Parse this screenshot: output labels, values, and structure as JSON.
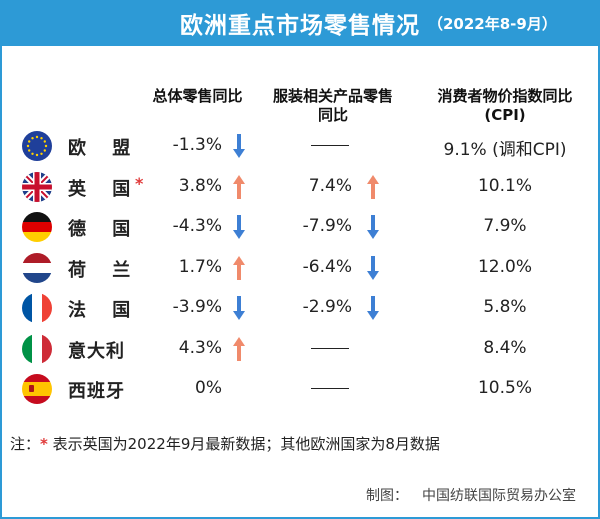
{
  "title": "欧洲重点市场零售情况",
  "subtitle": "（2022年8-9月）",
  "columns": {
    "retail": "总体零售同比",
    "apparel_line1": "服装相关产品零售",
    "apparel_line2": "同比",
    "cpi_line1": "消费者物价指数同比",
    "cpi_line2": "(CPI)"
  },
  "rows": [
    {
      "country": "欧 盟",
      "retail": "-1.3%",
      "retail_dir": "down",
      "apparel": "——",
      "apparel_dir": "",
      "cpi": "9.1% (调和CPI)",
      "flag": "eu-flag-icon",
      "star": ""
    },
    {
      "country": "英 国",
      "retail": "3.8%",
      "retail_dir": "up",
      "apparel": "7.4%",
      "apparel_dir": "up",
      "cpi": "10.1%",
      "flag": "uk-flag-icon",
      "star": "*"
    },
    {
      "country": "德 国",
      "retail": "-4.3%",
      "retail_dir": "down",
      "apparel": "-7.9%",
      "apparel_dir": "down",
      "cpi": "7.9%",
      "flag": "germany-flag-icon",
      "star": ""
    },
    {
      "country": "荷 兰",
      "retail": "1.7%",
      "retail_dir": "up",
      "apparel": "-6.4%",
      "apparel_dir": "down",
      "cpi": "12.0%",
      "flag": "netherlands-flag-icon",
      "star": ""
    },
    {
      "country": "法 国",
      "retail": "-3.9%",
      "retail_dir": "down",
      "apparel": "-2.9%",
      "apparel_dir": "down",
      "cpi": "5.8%",
      "flag": "france-flag-icon",
      "star": ""
    },
    {
      "country": "意大利",
      "retail": "4.3%",
      "retail_dir": "up",
      "apparel": "——",
      "apparel_dir": "",
      "cpi": "8.4%",
      "flag": "italy-flag-icon",
      "star": ""
    },
    {
      "country": "西班牙",
      "retail": "0%",
      "retail_dir": "",
      "apparel": "——",
      "apparel_dir": "",
      "cpi": "10.5%",
      "flag": "spain-flag-icon",
      "star": ""
    }
  ],
  "note": {
    "prefix": "注：",
    "star": "*",
    "text": " 表示英国为2022年9月最新数据；其他欧洲国家为8月数据"
  },
  "credit": {
    "label": "制图：",
    "org": "中国纺联国际贸易办公室"
  },
  "colors": {
    "header": "#2d9ad6",
    "up_arrow": "#f08a6b",
    "down_arrow": "#3d7fd4",
    "star": "#e03a3a"
  }
}
